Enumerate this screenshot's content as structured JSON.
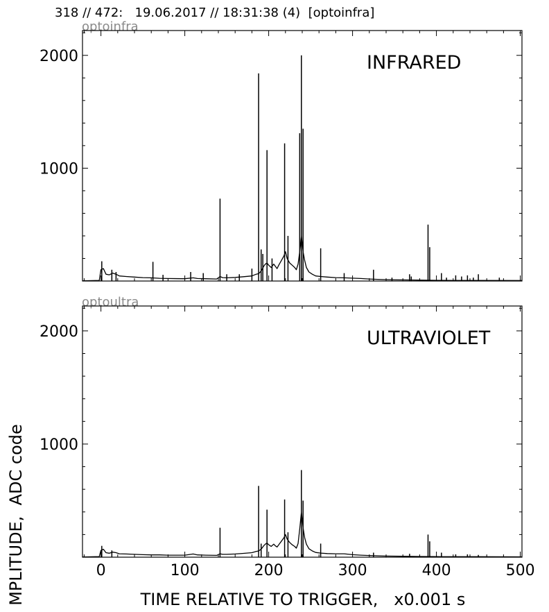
{
  "header": {
    "title": "318 // 472:   19.06.2017 // 18:31:38 (4)  [optoinfra]"
  },
  "axes": {
    "ylabel": "MPLITUDE,  ADC code",
    "xlabel": "TIME RELATIVE TO TRIGGER,   x0.001 s"
  },
  "chart_data": [
    {
      "type": "line",
      "tag": "optoinfra",
      "title": "INFRARED",
      "xlim": [
        -22,
        502
      ],
      "ylim": [
        0,
        2220
      ],
      "xticks": [
        0,
        100,
        200,
        300,
        400,
        500
      ],
      "xtick_labels": [
        "",
        "",
        "",
        "",
        "",
        ""
      ],
      "yticks": [
        1000,
        2000
      ],
      "ytick_labels": [
        "1000",
        "2000"
      ],
      "grid": false,
      "baseline": [
        [
          -22,
          2
        ],
        [
          -2,
          5
        ],
        [
          0,
          100
        ],
        [
          3,
          110
        ],
        [
          6,
          60
        ],
        [
          10,
          55
        ],
        [
          14,
          70
        ],
        [
          18,
          60
        ],
        [
          22,
          45
        ],
        [
          30,
          40
        ],
        [
          40,
          35
        ],
        [
          50,
          30
        ],
        [
          60,
          28
        ],
        [
          70,
          24
        ],
        [
          80,
          22
        ],
        [
          100,
          20
        ],
        [
          110,
          28
        ],
        [
          115,
          22
        ],
        [
          125,
          20
        ],
        [
          138,
          18
        ],
        [
          142,
          40
        ],
        [
          145,
          30
        ],
        [
          150,
          28
        ],
        [
          160,
          32
        ],
        [
          170,
          38
        ],
        [
          180,
          45
        ],
        [
          185,
          60
        ],
        [
          188,
          65
        ],
        [
          190,
          80
        ],
        [
          192,
          100
        ],
        [
          194,
          130
        ],
        [
          196,
          150
        ],
        [
          198,
          160
        ],
        [
          200,
          140
        ],
        [
          203,
          120
        ],
        [
          206,
          150
        ],
        [
          208,
          130
        ],
        [
          210,
          110
        ],
        [
          212,
          140
        ],
        [
          215,
          180
        ],
        [
          218,
          220
        ],
        [
          220,
          260
        ],
        [
          222,
          200
        ],
        [
          225,
          160
        ],
        [
          228,
          140
        ],
        [
          231,
          120
        ],
        [
          233,
          100
        ],
        [
          235,
          150
        ],
        [
          237,
          260
        ],
        [
          239,
          400
        ],
        [
          241,
          260
        ],
        [
          243,
          180
        ],
        [
          245,
          120
        ],
        [
          248,
          80
        ],
        [
          252,
          60
        ],
        [
          256,
          45
        ],
        [
          262,
          40
        ],
        [
          270,
          35
        ],
        [
          280,
          30
        ],
        [
          290,
          28
        ],
        [
          300,
          25
        ],
        [
          310,
          22
        ],
        [
          320,
          18
        ],
        [
          330,
          15
        ],
        [
          340,
          12
        ],
        [
          360,
          10
        ],
        [
          380,
          8
        ],
        [
          400,
          6
        ],
        [
          420,
          5
        ],
        [
          450,
          5
        ],
        [
          502,
          4
        ]
      ],
      "spikes": [
        [
          1,
          175
        ],
        [
          13,
          100
        ],
        [
          18,
          80
        ],
        [
          62,
          170
        ],
        [
          74,
          55
        ],
        [
          107,
          80
        ],
        [
          122,
          70
        ],
        [
          142,
          730
        ],
        [
          150,
          60
        ],
        [
          165,
          60
        ],
        [
          180,
          110
        ],
        [
          188,
          1840
        ],
        [
          191,
          280
        ],
        [
          193,
          240
        ],
        [
          198,
          1160
        ],
        [
          204,
          200
        ],
        [
          219,
          1220
        ],
        [
          223,
          400
        ],
        [
          237,
          1310
        ],
        [
          239,
          2000
        ],
        [
          241,
          1350
        ],
        [
          262,
          290
        ],
        [
          290,
          70
        ],
        [
          325,
          100
        ],
        [
          347,
          30
        ],
        [
          368,
          60
        ],
        [
          370,
          40
        ],
        [
          390,
          500
        ],
        [
          392,
          300
        ],
        [
          406,
          70
        ],
        [
          412,
          30
        ],
        [
          423,
          50
        ],
        [
          430,
          40
        ],
        [
          437,
          50
        ],
        [
          444,
          30
        ],
        [
          450,
          60
        ],
        [
          475,
          30
        ]
      ]
    },
    {
      "type": "line",
      "tag": "optoultra",
      "title": "ULTRAVIOLET",
      "xlim": [
        -22,
        502
      ],
      "ylim": [
        0,
        2220
      ],
      "xticks": [
        0,
        100,
        200,
        300,
        400,
        500
      ],
      "xtick_labels": [
        "0",
        "100",
        "200",
        "300",
        "400",
        "500"
      ],
      "yticks": [
        1000,
        2000
      ],
      "ytick_labels": [
        "1000",
        "2000"
      ],
      "grid": false,
      "baseline": [
        [
          -22,
          2
        ],
        [
          -2,
          5
        ],
        [
          0,
          60
        ],
        [
          3,
          70
        ],
        [
          6,
          40
        ],
        [
          10,
          35
        ],
        [
          14,
          45
        ],
        [
          18,
          40
        ],
        [
          22,
          30
        ],
        [
          30,
          28
        ],
        [
          40,
          25
        ],
        [
          50,
          22
        ],
        [
          60,
          20
        ],
        [
          70,
          20
        ],
        [
          80,
          18
        ],
        [
          100,
          18
        ],
        [
          110,
          28
        ],
        [
          115,
          20
        ],
        [
          125,
          18
        ],
        [
          138,
          16
        ],
        [
          142,
          30
        ],
        [
          145,
          25
        ],
        [
          150,
          25
        ],
        [
          160,
          28
        ],
        [
          170,
          34
        ],
        [
          180,
          40
        ],
        [
          185,
          50
        ],
        [
          188,
          55
        ],
        [
          190,
          65
        ],
        [
          192,
          80
        ],
        [
          194,
          100
        ],
        [
          196,
          115
        ],
        [
          198,
          125
        ],
        [
          200,
          110
        ],
        [
          203,
          95
        ],
        [
          206,
          115
        ],
        [
          208,
          100
        ],
        [
          210,
          90
        ],
        [
          212,
          110
        ],
        [
          215,
          140
        ],
        [
          218,
          170
        ],
        [
          220,
          200
        ],
        [
          222,
          160
        ],
        [
          225,
          130
        ],
        [
          228,
          110
        ],
        [
          231,
          95
        ],
        [
          233,
          80
        ],
        [
          235,
          120
        ],
        [
          237,
          250
        ],
        [
          239,
          400
        ],
        [
          241,
          260
        ],
        [
          243,
          170
        ],
        [
          245,
          115
        ],
        [
          248,
          75
        ],
        [
          252,
          55
        ],
        [
          256,
          42
        ],
        [
          262,
          36
        ],
        [
          270,
          32
        ],
        [
          280,
          30
        ],
        [
          290,
          30
        ],
        [
          300,
          22
        ],
        [
          310,
          18
        ],
        [
          320,
          15
        ],
        [
          330,
          12
        ],
        [
          340,
          10
        ],
        [
          360,
          8
        ],
        [
          380,
          6
        ],
        [
          400,
          5
        ],
        [
          420,
          4
        ],
        [
          450,
          4
        ],
        [
          502,
          3
        ]
      ],
      "spikes": [
        [
          1,
          100
        ],
        [
          13,
          60
        ],
        [
          142,
          260
        ],
        [
          188,
          630
        ],
        [
          191,
          120
        ],
        [
          198,
          420
        ],
        [
          219,
          510
        ],
        [
          223,
          220
        ],
        [
          239,
          770
        ],
        [
          241,
          500
        ],
        [
          262,
          120
        ],
        [
          325,
          40
        ],
        [
          368,
          30
        ],
        [
          390,
          200
        ],
        [
          392,
          140
        ],
        [
          406,
          40
        ],
        [
          423,
          25
        ],
        [
          437,
          25
        ],
        [
          450,
          20
        ]
      ]
    }
  ]
}
